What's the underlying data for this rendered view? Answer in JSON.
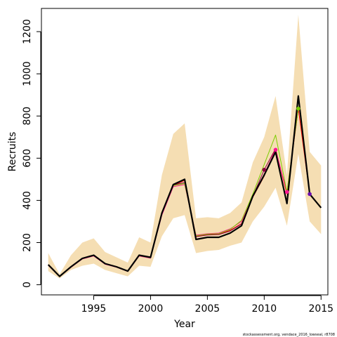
{
  "chart_data": {
    "type": "line",
    "xlabel": "Year",
    "ylabel": "Recruits",
    "footnote": "stockassessment.org, vendace_2016_lowseal, r8708",
    "xlim": [
      1990.4,
      2015.6
    ],
    "ylim": [
      -48,
      1310
    ],
    "x_ticks": [
      1995,
      2000,
      2005,
      2010,
      2015
    ],
    "y_ticks": [
      0,
      200,
      400,
      600,
      800,
      1000,
      1200
    ],
    "years": [
      1991,
      1992,
      1993,
      1994,
      1995,
      1996,
      1997,
      1998,
      1999,
      2000,
      2001,
      2002,
      2003,
      2004,
      2005,
      2006,
      2007,
      2008,
      2009,
      2010,
      2011,
      2012,
      2013,
      2014,
      2015
    ],
    "confidence_band": {
      "color": "#F5DEB3",
      "lower": [
        65,
        30,
        70,
        90,
        100,
        70,
        55,
        40,
        90,
        85,
        230,
        315,
        330,
        150,
        160,
        165,
        185,
        200,
        300,
        370,
        460,
        280,
        620,
        300,
        240
      ],
      "upper": [
        150,
        50,
        140,
        200,
        220,
        155,
        130,
        105,
        225,
        200,
        520,
        715,
        765,
        315,
        320,
        315,
        340,
        390,
        580,
        700,
        895,
        520,
        1280,
        630,
        565
      ]
    },
    "series": [
      {
        "color": "#000000",
        "width": 2.2,
        "values": [
          95,
          40,
          85,
          125,
          140,
          100,
          85,
          65,
          140,
          130,
          340,
          475,
          500,
          215,
          225,
          225,
          245,
          280,
          420,
          520,
          630,
          385,
          895,
          430,
          365
        ]
      },
      {
        "color": "#FF0000",
        "width": 1,
        "values": [
          93,
          40,
          83,
          123,
          138,
          98,
          84,
          64,
          138,
          128,
          335,
          470,
          495,
          230,
          238,
          240,
          258,
          290,
          415,
          515,
          645,
          430,
          835,
          430,
          null
        ]
      },
      {
        "color": "#FF1493",
        "width": 1,
        "values": [
          92,
          39,
          82,
          122,
          136,
          97,
          83,
          63,
          136,
          126,
          330,
          465,
          475,
          235,
          242,
          245,
          265,
          300,
          418,
          525,
          640,
          440,
          835,
          null,
          null
        ]
      },
      {
        "color": "#8B0040",
        "width": 1,
        "values": [
          94,
          40,
          84,
          124,
          139,
          99,
          85,
          64,
          139,
          129,
          338,
          472,
          485,
          228,
          236,
          238,
          255,
          288,
          420,
          545,
          645,
          null,
          null,
          null,
          null
        ]
      },
      {
        "color": "#7CCD00",
        "width": 1,
        "values": [
          93,
          40,
          84,
          124,
          138,
          99,
          84,
          64,
          138,
          128,
          336,
          470,
          480,
          232,
          240,
          242,
          262,
          305,
          430,
          570,
          710,
          440,
          835,
          null,
          null
        ]
      }
    ],
    "end_points": [
      {
        "x": 2010,
        "y": 545,
        "color": "#8B0040"
      },
      {
        "x": 2011,
        "y": 640,
        "color": "#FF1493"
      },
      {
        "x": 2012,
        "y": 440,
        "color": "#FF1493"
      },
      {
        "x": 2013,
        "y": 835,
        "color": "#7CCD00"
      },
      {
        "x": 2014,
        "y": 430,
        "color": "#6A0DAD"
      }
    ]
  }
}
